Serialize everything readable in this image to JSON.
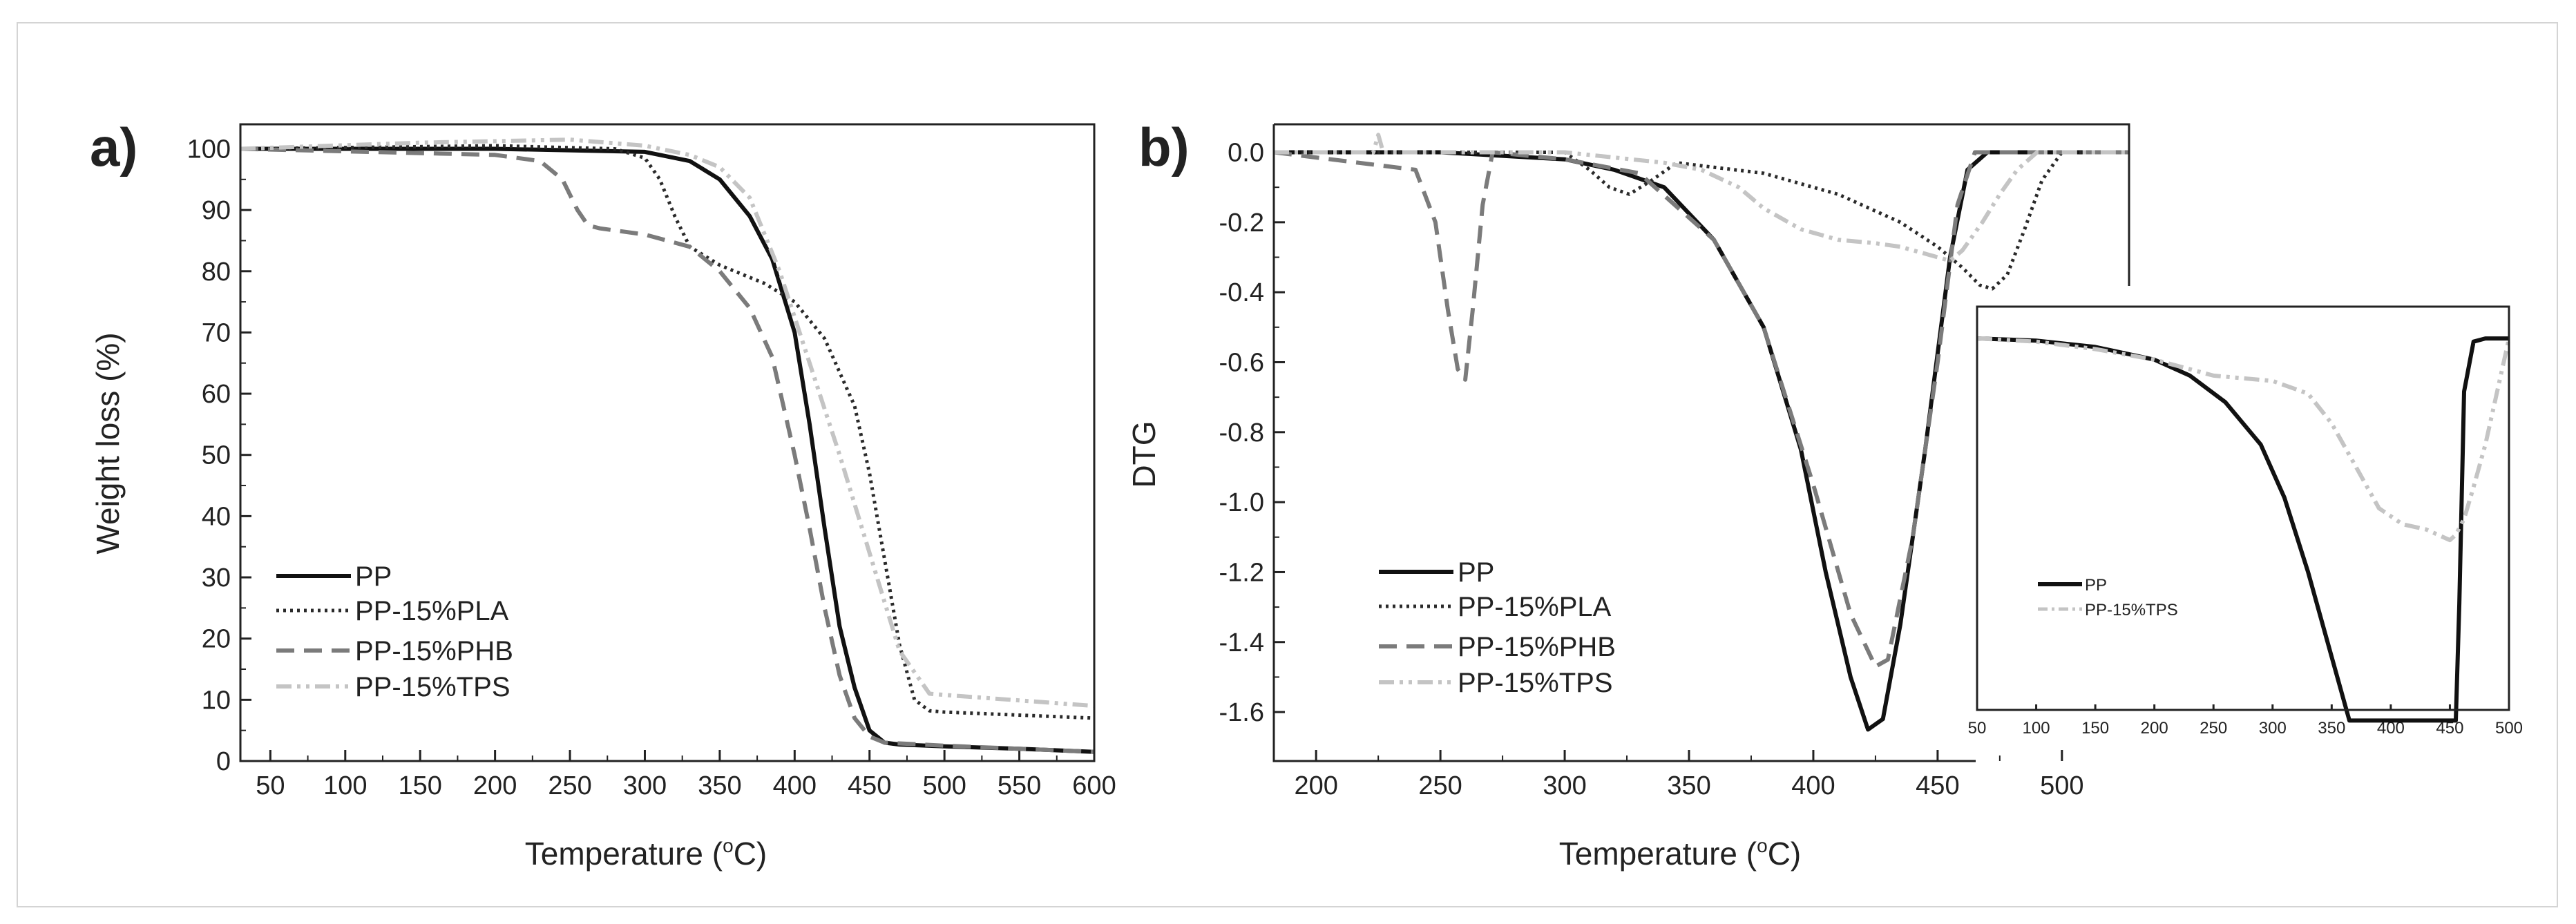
{
  "colors": {
    "PP": "#111111",
    "PP-15%PLA": "#2a2a2a",
    "PP-15%PHB": "#7b7b7b",
    "PP-15%TPS": "#c4c4c4"
  },
  "chart_data": [
    {
      "id": "a",
      "type": "line",
      "panel_label": "a)",
      "xlabel": "Temperature (°C)",
      "xlabel_main": "Temperature (",
      "xlabel_sup": "o",
      "xlabel_unit": "C)",
      "ylabel": "Weight loss (%)",
      "xlim": [
        30,
        600
      ],
      "ylim": [
        0,
        104
      ],
      "xticks": [
        50,
        100,
        150,
        200,
        250,
        300,
        350,
        400,
        450,
        500,
        550,
        600
      ],
      "yticks": [
        0,
        10,
        20,
        30,
        40,
        50,
        60,
        70,
        80,
        90,
        100
      ],
      "legend_position": "bottom-left",
      "series": [
        {
          "name": "PP",
          "style": "solid",
          "x": [
            30,
            200,
            300,
            330,
            350,
            370,
            385,
            400,
            410,
            420,
            430,
            440,
            450,
            460,
            470,
            500,
            550,
            600
          ],
          "y": [
            100,
            100,
            99.5,
            98,
            95,
            89,
            82,
            70,
            55,
            38,
            22,
            12,
            5,
            3,
            2.7,
            2.4,
            2,
            1.5
          ]
        },
        {
          "name": "PP-15%PLA",
          "style": "dot",
          "x": [
            30,
            200,
            280,
            300,
            310,
            320,
            330,
            350,
            380,
            400,
            420,
            440,
            450,
            460,
            470,
            480,
            490,
            500,
            600
          ],
          "y": [
            100,
            100.5,
            100,
            98.5,
            95,
            89,
            84,
            81,
            78,
            75,
            69,
            58,
            47,
            33,
            19,
            10,
            8.2,
            8,
            7
          ]
        },
        {
          "name": "PP-15%PHB",
          "style": "dash",
          "x": [
            30,
            200,
            230,
            245,
            255,
            262,
            270,
            300,
            330,
            350,
            370,
            385,
            400,
            410,
            420,
            430,
            440,
            450,
            460,
            500,
            600
          ],
          "y": [
            100,
            99,
            98,
            95,
            90,
            87.5,
            87,
            86,
            84,
            80,
            74,
            66,
            50,
            38,
            25,
            14,
            7,
            4,
            3,
            2.5,
            1.5
          ]
        },
        {
          "name": "PP-15%TPS",
          "style": "dashdot",
          "x": [
            30,
            150,
            250,
            300,
            330,
            350,
            370,
            390,
            410,
            430,
            450,
            470,
            490,
            500,
            600
          ],
          "y": [
            100,
            101,
            101.5,
            100.5,
            99,
            97,
            92,
            80,
            65,
            50,
            34,
            18,
            11,
            10.8,
            9
          ]
        }
      ]
    },
    {
      "id": "b",
      "type": "line",
      "panel_label": "b)",
      "xlabel": "Temperature (°C)",
      "xlabel_main": "Temperature (",
      "xlabel_sup": "o",
      "xlabel_unit": "C)",
      "ylabel": "DTG",
      "xlim": [
        183,
        527
      ],
      "ylim": [
        -1.74,
        0.08
      ],
      "xticks": [
        200,
        250,
        300,
        350,
        400,
        450,
        500
      ],
      "yticks": [
        0.0,
        -0.2,
        -0.4,
        -0.6,
        -0.8,
        -1.0,
        -1.2,
        -1.4,
        -1.6
      ],
      "yticklabels": [
        "0.0",
        "-0.2",
        "-0.4",
        "-0.6",
        "-0.8",
        "-1.0",
        "-1.2",
        "-1.4",
        "-1.6"
      ],
      "legend_position": "bottom-left",
      "series": [
        {
          "name": "PP",
          "style": "solid",
          "x": [
            183,
            250,
            300,
            320,
            340,
            360,
            380,
            395,
            405,
            415,
            422,
            428,
            435,
            445,
            455,
            462,
            470,
            527
          ],
          "y": [
            0,
            0,
            -0.02,
            -0.05,
            -0.1,
            -0.25,
            -0.5,
            -0.85,
            -1.2,
            -1.5,
            -1.65,
            -1.62,
            -1.35,
            -0.85,
            -0.3,
            -0.05,
            0,
            0
          ]
        },
        {
          "name": "PP-15%PLA",
          "style": "dot",
          "x": [
            183,
            300,
            310,
            318,
            326,
            335,
            345,
            380,
            410,
            435,
            450,
            460,
            467,
            472,
            478,
            485,
            492,
            500,
            527
          ],
          "y": [
            0,
            0,
            -0.05,
            -0.1,
            -0.12,
            -0.08,
            -0.03,
            -0.06,
            -0.12,
            -0.2,
            -0.27,
            -0.33,
            -0.38,
            -0.39,
            -0.35,
            -0.22,
            -0.08,
            0,
            0
          ]
        },
        {
          "name": "PP-15%PHB",
          "style": "dash",
          "x": [
            183,
            240,
            248,
            253,
            257,
            260,
            263,
            267,
            271,
            300,
            330,
            360,
            380,
            400,
            415,
            425,
            430,
            440,
            450,
            458,
            465,
            527
          ],
          "y": [
            0,
            -0.05,
            -0.2,
            -0.45,
            -0.62,
            -0.65,
            -0.45,
            -0.15,
            0,
            -0.02,
            -0.06,
            -0.25,
            -0.5,
            -0.95,
            -1.32,
            -1.47,
            -1.45,
            -1.1,
            -0.6,
            -0.15,
            0,
            0
          ]
        },
        {
          "name": "PP-15%TPS",
          "style": "dashdot",
          "x": [
            183,
            223,
            225,
            227,
            300,
            340,
            355,
            370,
            380,
            395,
            410,
            425,
            435,
            445,
            455,
            460,
            468,
            475,
            482,
            490,
            527
          ],
          "y": [
            0,
            0,
            0.05,
            0,
            0,
            -0.03,
            -0.05,
            -0.1,
            -0.16,
            -0.22,
            -0.25,
            -0.26,
            -0.27,
            -0.29,
            -0.31,
            -0.28,
            -0.2,
            -0.12,
            -0.05,
            0,
            0
          ]
        }
      ]
    },
    {
      "id": "inset",
      "type": "line",
      "xlim": [
        50,
        500
      ],
      "ylim": [
        -0.35,
        0.03
      ],
      "xticks": [
        50,
        100,
        150,
        200,
        250,
        300,
        350,
        400,
        450,
        500
      ],
      "legend_position": "bottom-left",
      "series": [
        {
          "name": "PP",
          "style": "solid",
          "x": [
            50,
            100,
            150,
            200,
            230,
            260,
            290,
            310,
            330,
            350,
            360,
            365,
            455,
            458,
            462,
            470,
            480,
            490,
            500
          ],
          "y": [
            0,
            -0.002,
            -0.008,
            -0.02,
            -0.035,
            -0.06,
            -0.1,
            -0.15,
            -0.22,
            -0.3,
            -0.34,
            -0.36,
            -0.36,
            -0.25,
            -0.05,
            -0.003,
            0,
            0,
            0
          ]
        },
        {
          "name": "PP-15%TPS",
          "style": "dashdot",
          "x": [
            50,
            100,
            150,
            200,
            250,
            300,
            330,
            350,
            370,
            390,
            410,
            430,
            450,
            455,
            462,
            470,
            480,
            490,
            500
          ],
          "y": [
            0,
            -0.003,
            -0.01,
            -0.02,
            -0.035,
            -0.04,
            -0.052,
            -0.08,
            -0.12,
            -0.16,
            -0.175,
            -0.18,
            -0.19,
            -0.185,
            -0.17,
            -0.14,
            -0.1,
            -0.05,
            0
          ]
        }
      ]
    }
  ]
}
